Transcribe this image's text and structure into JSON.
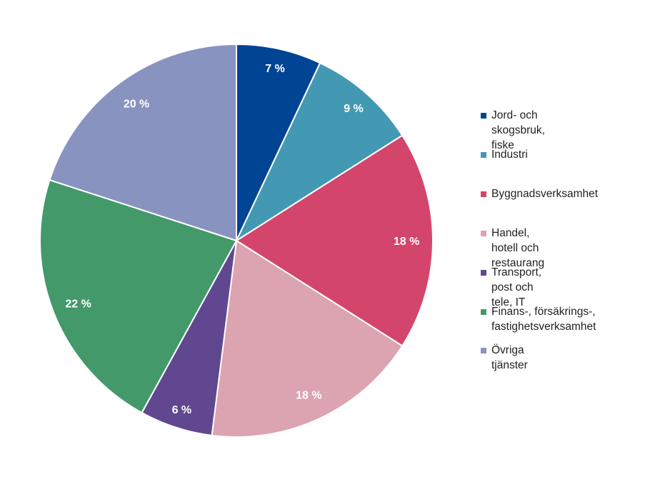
{
  "chart_data": {
    "type": "pie",
    "unit_suffix": " %",
    "start": "top, clockwise",
    "legend_position": "right",
    "slices": [
      {
        "label": "Jord- och skogsbruk, fiske",
        "value": 7,
        "color": "#004494"
      },
      {
        "label": "Industri",
        "value": 9,
        "color": "#4399b3"
      },
      {
        "label": "Byggnadsverksamhet",
        "value": 18,
        "color": "#d4456b"
      },
      {
        "label": "Handel, hotell och restaurang",
        "value": 18,
        "color": "#dca3b0"
      },
      {
        "label": "Transport, post och tele, IT",
        "value": 6,
        "color": "#604790"
      },
      {
        "label": "Finans-, försäkrings-,\nfastighetsverksamhet",
        "value": 22,
        "color": "#43996a"
      },
      {
        "label": "Övriga tjänster",
        "value": 20,
        "color": "#8893bf"
      }
    ]
  }
}
